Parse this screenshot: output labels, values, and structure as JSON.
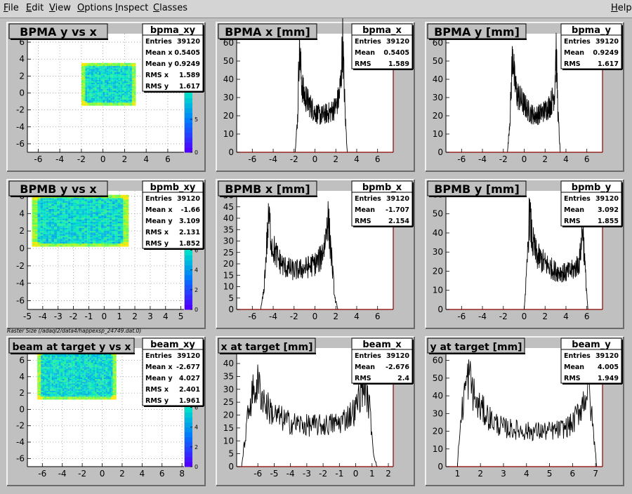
{
  "menu": [
    {
      "first": "F",
      "rest": "ile"
    },
    {
      "first": "E",
      "rest": "dit"
    },
    {
      "first": "V",
      "rest": "iew"
    },
    {
      "first": "O",
      "rest": "ptions"
    },
    {
      "first": "I",
      "rest": "nspect"
    },
    {
      "first": "C",
      "rest": "lasses"
    }
  ],
  "help": {
    "first": "H",
    "rest": "elp"
  },
  "raster_caption": "Raster Size (/adaql2/data4/happexsp_24749.dat.0)",
  "colors": {
    "frame": "#8b0000",
    "pad": "#ffffff",
    "panel": "#c0c0c0",
    "hist": "#000000"
  },
  "chart_data": [
    {
      "type": "heatmap",
      "title": "BPMA y vs x",
      "stats_name": "bpma_xy",
      "stats": [
        [
          "Entries",
          "39120"
        ],
        [
          "Mean x",
          "0.5405"
        ],
        [
          "Mean y",
          "0.9249"
        ],
        [
          "RMS x",
          "1.589"
        ],
        [
          "RMS y",
          "1.617"
        ]
      ],
      "xlim": [
        -7,
        7.5
      ],
      "ylim": [
        -7,
        7
      ],
      "xticks": [
        -6,
        -4,
        -2,
        0,
        2,
        4,
        6
      ],
      "yticks": [
        -6,
        -4,
        -2,
        0,
        2,
        4,
        6
      ],
      "palette_ticks": [
        0,
        5,
        10,
        15
      ],
      "palette_max": 18,
      "box": {
        "x": [
          -2,
          3
        ],
        "y": [
          -1.5,
          3.5
        ]
      },
      "grid": true
    },
    {
      "type": "line",
      "title": "BPMA x [mm]",
      "stats_name": "bpma_x",
      "stats": [
        [
          "Entries",
          "39120"
        ],
        [
          "Mean",
          "0.5405"
        ],
        [
          "RMS",
          "1.589"
        ]
      ],
      "xlim": [
        -7.5,
        7.5
      ],
      "ylim": [
        0,
        65
      ],
      "xticks": [
        -6,
        -4,
        -2,
        0,
        2,
        4,
        6
      ],
      "yticks": [
        0,
        10,
        20,
        30,
        40,
        50,
        60
      ],
      "x": [
        -1.9,
        -1.65,
        -1.5,
        -1.3,
        -1.1,
        -0.5,
        0,
        0.5,
        1,
        1.5,
        2,
        2.3,
        2.5,
        2.65,
        2.9,
        3.1
      ],
      "y": [
        0,
        20,
        60,
        40,
        32,
        26,
        22,
        20,
        21,
        22,
        25,
        30,
        40,
        62,
        20,
        0
      ]
    },
    {
      "type": "line",
      "title": "BPMA y [mm]",
      "stats_name": "bpma_y",
      "stats": [
        [
          "Entries",
          "39120"
        ],
        [
          "Mean",
          "0.9249"
        ],
        [
          "RMS",
          "1.617"
        ]
      ],
      "xlim": [
        -7.5,
        7.5
      ],
      "ylim": [
        0,
        65
      ],
      "xticks": [
        -6,
        -4,
        -2,
        0,
        2,
        4,
        6
      ],
      "yticks": [
        0,
        10,
        20,
        30,
        40,
        50,
        60
      ],
      "x": [
        -1.6,
        -1.35,
        -1.1,
        -0.95,
        -0.7,
        0,
        0.5,
        1,
        1.5,
        2,
        2.5,
        2.9,
        3.05,
        3.25,
        3.45
      ],
      "y": [
        0,
        20,
        58,
        40,
        32,
        26,
        22,
        20,
        21,
        23,
        26,
        32,
        57,
        20,
        0
      ]
    },
    {
      "type": "heatmap",
      "title": "BPMB y vs x",
      "stats_name": "bpmb_xy",
      "stats": [
        [
          "Entries",
          "39120"
        ],
        [
          "Mean x",
          "-1.66"
        ],
        [
          "Mean y",
          "3.109"
        ],
        [
          "RMS x",
          "2.131"
        ],
        [
          "RMS y",
          "1.852"
        ]
      ],
      "xlim": [
        -5,
        5.2
      ],
      "ylim": [
        -7,
        6.6
      ],
      "xticks": [
        -5,
        -4,
        -3,
        -2,
        -1,
        0,
        1,
        2,
        3,
        4,
        5
      ],
      "yticks": [
        -6,
        -4,
        -2,
        0,
        2,
        4,
        6
      ],
      "palette_ticks": [
        0,
        2,
        4,
        6,
        8,
        10
      ],
      "palette_max": 12,
      "box": {
        "x": [
          -4.7,
          1.5
        ],
        "y": [
          0.2,
          6
        ]
      },
      "grid": true
    },
    {
      "type": "line",
      "title": "BPMB x [mm]",
      "stats_name": "bpmb_x",
      "stats": [
        [
          "Entries",
          "39120"
        ],
        [
          "Mean",
          "-1.707"
        ],
        [
          "RMS",
          "2.154"
        ]
      ],
      "xlim": [
        -7.5,
        7.5
      ],
      "ylim": [
        0,
        52
      ],
      "xticks": [
        -6,
        -4,
        -2,
        0,
        2,
        4,
        6
      ],
      "yticks": [
        0,
        5,
        10,
        15,
        20,
        25,
        30,
        35,
        40,
        45,
        50
      ],
      "x": [
        -5.2,
        -4.9,
        -4.6,
        -4.4,
        -4.1,
        -3.5,
        -3,
        -2,
        -1,
        0,
        0.5,
        1,
        1.2,
        1.5,
        1.9,
        2.2
      ],
      "y": [
        0,
        8,
        30,
        40,
        28,
        22,
        19,
        17,
        18,
        20,
        22,
        30,
        42,
        28,
        5,
        0
      ]
    },
    {
      "type": "line",
      "title": "BPMB y [mm]",
      "stats_name": "bpmb_y",
      "stats": [
        [
          "Entries",
          "39120"
        ],
        [
          "Mean",
          "3.092"
        ],
        [
          "RMS",
          "1.855"
        ]
      ],
      "xlim": [
        -7.5,
        7.5
      ],
      "ylim": [
        0,
        62
      ],
      "xticks": [
        -6,
        -4,
        -2,
        0,
        2,
        4,
        6
      ],
      "yticks": [
        0,
        10,
        20,
        30,
        40,
        50,
        60
      ],
      "x": [
        0,
        0.25,
        0.5,
        0.8,
        1.2,
        2,
        3,
        4,
        4.8,
        5.3,
        5.6,
        5.85,
        6.1
      ],
      "y": [
        0,
        20,
        50,
        35,
        28,
        24,
        20,
        19,
        21,
        25,
        44,
        20,
        0
      ]
    },
    {
      "type": "heatmap",
      "title": "beam at target y vs x",
      "stats_name": "beam_xy",
      "stats": [
        [
          "Entries",
          "39120"
        ],
        [
          "Mean x",
          "-2.677"
        ],
        [
          "Mean y",
          "4.027"
        ],
        [
          "RMS x",
          "2.401"
        ],
        [
          "RMS y",
          "1.961"
        ]
      ],
      "xlim": [
        -7.5,
        8.2
      ],
      "ylim": [
        -7,
        7.5
      ],
      "xticks": [
        -6,
        -4,
        -2,
        0,
        2,
        4,
        6,
        8
      ],
      "yticks": [
        -6,
        -4,
        -2,
        0,
        2,
        4,
        6
      ],
      "palette_ticks": [
        0,
        2,
        4,
        6,
        8,
        10
      ],
      "palette_max": 12,
      "box": {
        "x": [
          -6.5,
          1.3
        ],
        "y": [
          1.2,
          7
        ]
      },
      "grid": true
    },
    {
      "type": "line",
      "title": "x at target [mm]",
      "stats_name": "beam_x",
      "stats": [
        [
          "Entries",
          "39120"
        ],
        [
          "Mean",
          "-2.676"
        ],
        [
          "RMS",
          "2.4"
        ]
      ],
      "xlim": [
        -7.3,
        2.3
      ],
      "ylim": [
        0,
        46
      ],
      "xticks": [
        -6,
        -5,
        -4,
        -3,
        -2,
        -1,
        0,
        1,
        2
      ],
      "yticks": [
        0,
        5,
        10,
        15,
        20,
        25,
        30,
        35,
        40,
        45
      ],
      "x": [
        -7,
        -6.8,
        -6.5,
        -6.2,
        -6,
        -5.5,
        -5,
        -4,
        -3,
        -2,
        -1,
        0,
        0.3,
        0.6,
        0.9,
        1.1,
        1.3
      ],
      "y": [
        0,
        10,
        25,
        30,
        32,
        24,
        20,
        17,
        16,
        16,
        17,
        22,
        30,
        32,
        20,
        5,
        0
      ]
    },
    {
      "type": "line",
      "title": "y at target [mm]",
      "stats_name": "beam_y",
      "stats": [
        [
          "Entries",
          "39120"
        ],
        [
          "Mean",
          "4.005"
        ],
        [
          "RMS",
          "1.949"
        ]
      ],
      "xlim": [
        0.5,
        7.3
      ],
      "ylim": [
        0,
        67
      ],
      "xticks": [
        1,
        2,
        3,
        4,
        5,
        6,
        7
      ],
      "yticks": [
        0,
        10,
        20,
        30,
        40,
        50,
        60
      ],
      "x": [
        1,
        1.1,
        1.3,
        1.5,
        1.8,
        2.5,
        3,
        4,
        5,
        5.5,
        6,
        6.4,
        6.7,
        6.9,
        7.05
      ],
      "y": [
        0,
        20,
        42,
        52,
        36,
        26,
        22,
        20,
        20,
        21,
        24,
        35,
        45,
        20,
        0
      ]
    }
  ]
}
